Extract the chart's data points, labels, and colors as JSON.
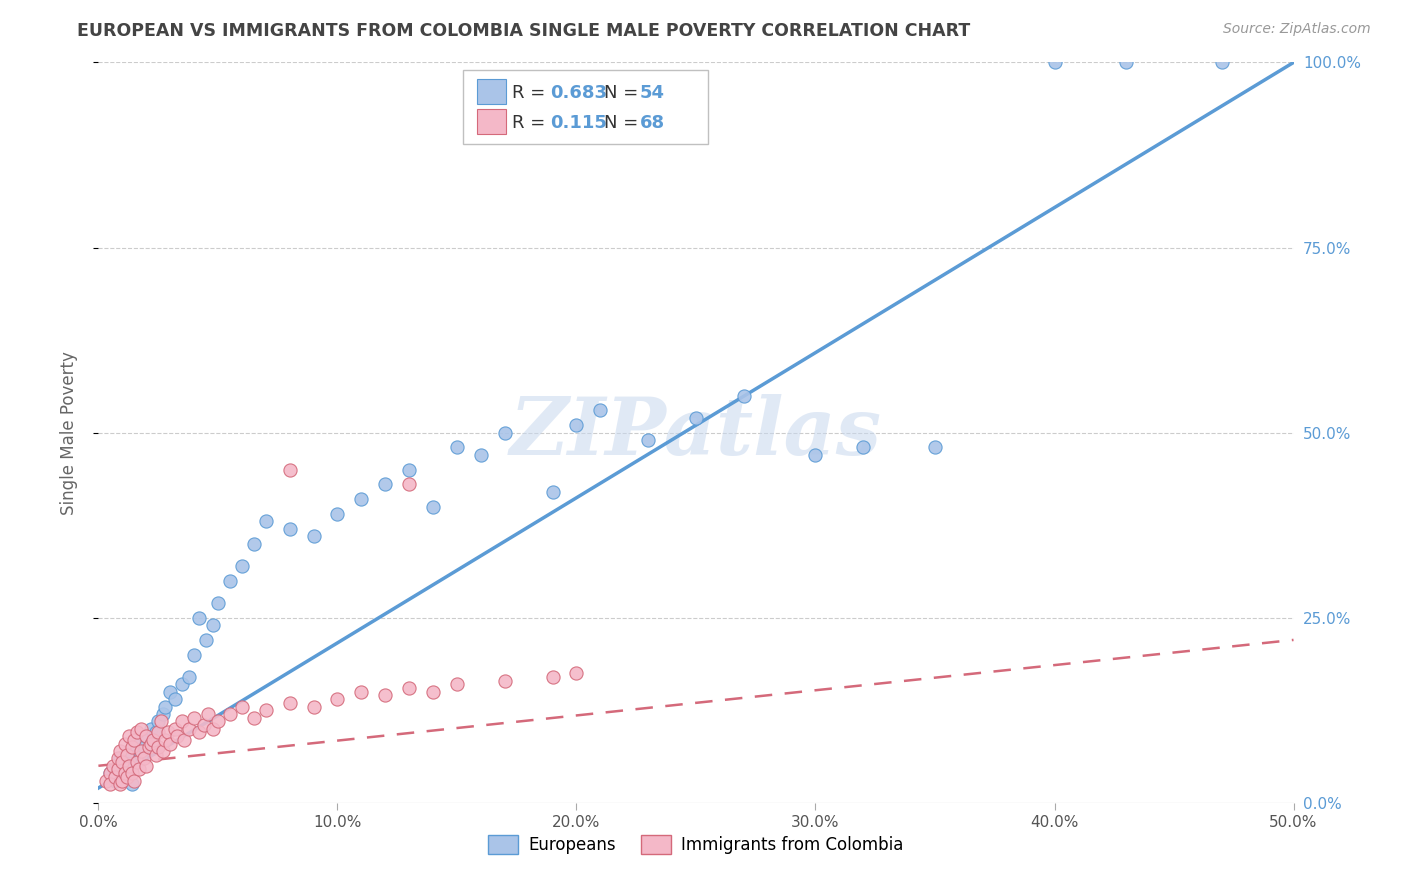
{
  "title": "EUROPEAN VS IMMIGRANTS FROM COLOMBIA SINGLE MALE POVERTY CORRELATION CHART",
  "source": "Source: ZipAtlas.com",
  "ylabel": "Single Male Poverty",
  "x_min": 0.0,
  "x_max": 0.5,
  "y_min": 0.0,
  "y_max": 1.0,
  "x_ticks": [
    0.0,
    0.1,
    0.2,
    0.3,
    0.4,
    0.5
  ],
  "x_tick_labels": [
    "0.0%",
    "10.0%",
    "20.0%",
    "30.0%",
    "40.0%",
    "50.0%"
  ],
  "y_ticks_right": [
    0.0,
    0.25,
    0.5,
    0.75,
    1.0
  ],
  "y_tick_labels_right": [
    "0.0%",
    "25.0%",
    "50.0%",
    "75.0%",
    "100.0%"
  ],
  "blue_scatter_x": [
    0.005,
    0.007,
    0.009,
    0.01,
    0.011,
    0.012,
    0.013,
    0.014,
    0.015,
    0.016,
    0.018,
    0.019,
    0.02,
    0.022,
    0.023,
    0.024,
    0.025,
    0.027,
    0.028,
    0.03,
    0.032,
    0.035,
    0.038,
    0.04,
    0.042,
    0.045,
    0.048,
    0.05,
    0.055,
    0.06,
    0.065,
    0.07,
    0.08,
    0.09,
    0.1,
    0.11,
    0.12,
    0.13,
    0.14,
    0.15,
    0.16,
    0.17,
    0.19,
    0.2,
    0.21,
    0.23,
    0.25,
    0.27,
    0.3,
    0.32,
    0.35,
    0.4,
    0.43,
    0.47
  ],
  "blue_scatter_y": [
    0.04,
    0.03,
    0.06,
    0.05,
    0.035,
    0.045,
    0.07,
    0.025,
    0.08,
    0.055,
    0.065,
    0.075,
    0.09,
    0.1,
    0.085,
    0.095,
    0.11,
    0.12,
    0.13,
    0.15,
    0.14,
    0.16,
    0.17,
    0.2,
    0.25,
    0.22,
    0.24,
    0.27,
    0.3,
    0.32,
    0.35,
    0.38,
    0.37,
    0.36,
    0.39,
    0.41,
    0.43,
    0.45,
    0.4,
    0.48,
    0.47,
    0.5,
    0.42,
    0.51,
    0.53,
    0.49,
    0.52,
    0.55,
    0.47,
    0.48,
    0.48,
    1.0,
    1.0,
    1.0
  ],
  "pink_scatter_x": [
    0.003,
    0.005,
    0.005,
    0.006,
    0.007,
    0.008,
    0.008,
    0.009,
    0.009,
    0.01,
    0.01,
    0.011,
    0.011,
    0.012,
    0.012,
    0.013,
    0.013,
    0.014,
    0.014,
    0.015,
    0.015,
    0.016,
    0.016,
    0.017,
    0.018,
    0.018,
    0.019,
    0.02,
    0.02,
    0.021,
    0.022,
    0.023,
    0.024,
    0.025,
    0.025,
    0.026,
    0.027,
    0.028,
    0.029,
    0.03,
    0.032,
    0.033,
    0.035,
    0.036,
    0.038,
    0.04,
    0.042,
    0.044,
    0.046,
    0.048,
    0.05,
    0.055,
    0.06,
    0.065,
    0.07,
    0.08,
    0.09,
    0.1,
    0.11,
    0.12,
    0.13,
    0.14,
    0.15,
    0.17,
    0.19,
    0.2,
    0.13,
    0.08
  ],
  "pink_scatter_y": [
    0.03,
    0.04,
    0.025,
    0.05,
    0.035,
    0.045,
    0.06,
    0.025,
    0.07,
    0.03,
    0.055,
    0.04,
    0.08,
    0.035,
    0.065,
    0.05,
    0.09,
    0.04,
    0.075,
    0.03,
    0.085,
    0.055,
    0.095,
    0.045,
    0.07,
    0.1,
    0.06,
    0.05,
    0.09,
    0.075,
    0.08,
    0.085,
    0.065,
    0.095,
    0.075,
    0.11,
    0.07,
    0.085,
    0.095,
    0.08,
    0.1,
    0.09,
    0.11,
    0.085,
    0.1,
    0.115,
    0.095,
    0.105,
    0.12,
    0.1,
    0.11,
    0.12,
    0.13,
    0.115,
    0.125,
    0.135,
    0.13,
    0.14,
    0.15,
    0.145,
    0.155,
    0.15,
    0.16,
    0.165,
    0.17,
    0.175,
    0.43,
    0.45
  ],
  "blue_line_x": [
    0.0,
    0.5
  ],
  "blue_line_y": [
    0.02,
    1.0
  ],
  "pink_line_x": [
    0.0,
    0.5
  ],
  "pink_line_y": [
    0.05,
    0.22
  ],
  "watermark": "ZIPatlas",
  "blue_color": "#5b9bd5",
  "blue_scatter_color": "#aac4e8",
  "pink_color": "#d4697a",
  "pink_scatter_color": "#f4b8c8",
  "grid_color": "#cccccc",
  "title_color": "#444444",
  "axis_label_color": "#666666",
  "right_axis_color": "#5b9bd5",
  "legend_R_N_color": "#5b9bd5",
  "legend_label_color": "#333333"
}
